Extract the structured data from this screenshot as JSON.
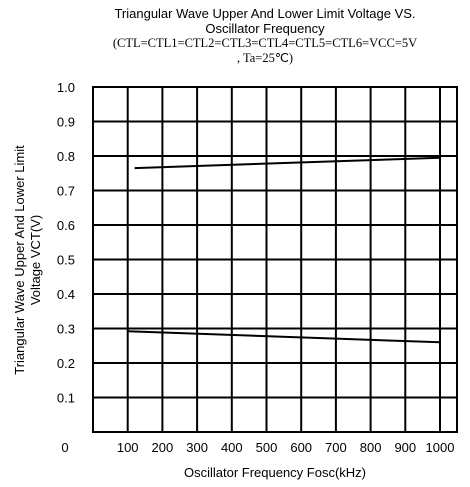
{
  "chart_data": {
    "type": "line",
    "title_lines": [
      "Triangular Wave Upper And Lower Limit Voltage VS.",
      "Oscillator Frequency"
    ],
    "subtitle_lines": [
      "(CTL=CTL1=CTL2=CTL3=CTL4=CTL5=CTL6=VCC=5V",
      ", Ta=25℃)"
    ],
    "xlabel": "Oscillator Frequency Fosc(kHz)",
    "ylabel_lines": [
      "Triangular Wave Upper And Lower Limit",
      "Voltage VCT(V)"
    ],
    "x_ticks": [
      "0",
      "100",
      "200",
      "300",
      "400",
      "500",
      "600",
      "700",
      "800",
      "900",
      "1000"
    ],
    "y_ticks": [
      "0.1",
      "0.2",
      "0.3",
      "0.4",
      "0.5",
      "0.6",
      "0.7",
      "0.8",
      "0.9",
      "1.0"
    ],
    "origin_label": "0",
    "xlim": [
      0,
      1000
    ],
    "ylim": [
      0,
      1.0
    ],
    "grid": true,
    "line_color": "#000000",
    "series": [
      {
        "x": [
          120,
          1000
        ],
        "y": [
          0.765,
          0.795
        ]
      },
      {
        "x": [
          100,
          1000
        ],
        "y": [
          0.292,
          0.26
        ]
      }
    ]
  }
}
